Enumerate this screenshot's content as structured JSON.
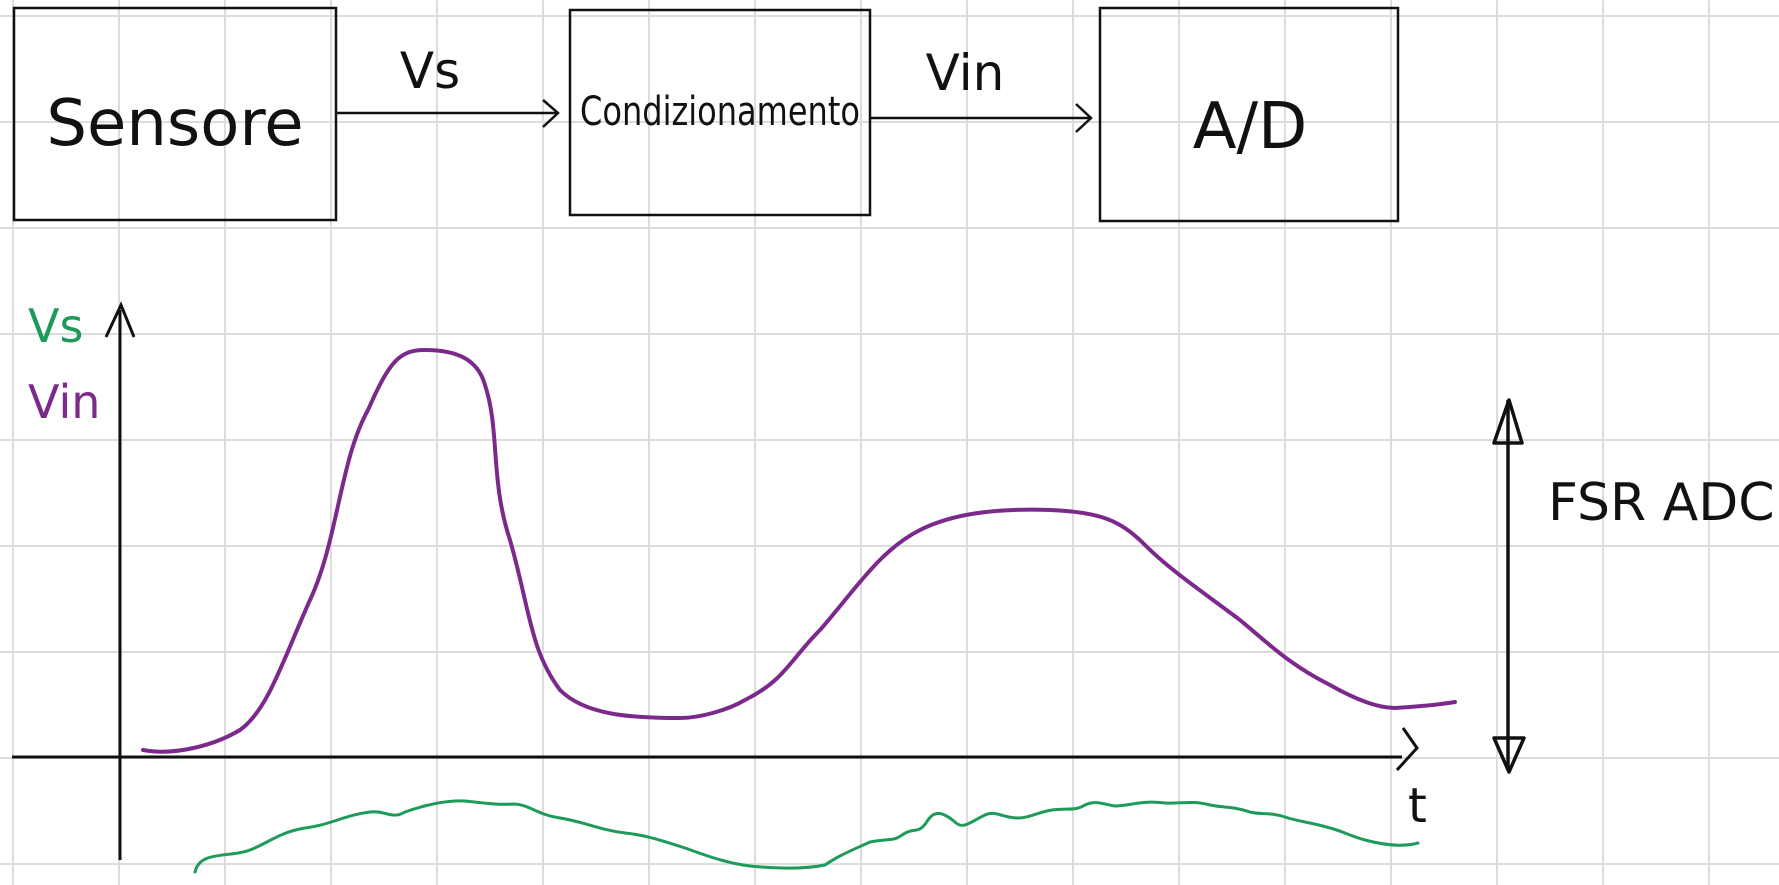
{
  "colors": {
    "ink": "#111111",
    "grid": "#dcdcdc",
    "vin": "#7b2a8c",
    "vs": "#1e9a5a"
  },
  "blocks": [
    {
      "id": "sensore",
      "label": "Sensore"
    },
    {
      "id": "condizionamento",
      "label": "Condizionamento"
    },
    {
      "id": "ad",
      "label": "A/D"
    }
  ],
  "arrows": [
    {
      "from": "sensore",
      "to": "condizionamento",
      "label": "Vs"
    },
    {
      "from": "condizionamento",
      "to": "ad",
      "label": "Vin"
    }
  ],
  "plot": {
    "ylabel_vs": "Vs",
    "ylabel_vin": "Vin",
    "xlabel": "t",
    "fsr_label": "FSR ADC"
  }
}
